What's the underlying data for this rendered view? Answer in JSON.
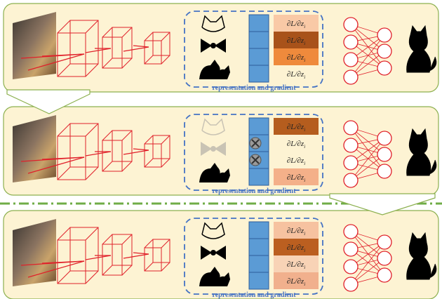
{
  "panels": [
    {
      "caption": "representation and gradient",
      "faded_icons": false,
      "masked_cells": [],
      "gradients": [
        {
          "text": "∂L/∂z",
          "sub": "i",
          "fill": "#f9c9a6"
        },
        {
          "text": "∂L/∂z",
          "sub": "i",
          "fill": "#a8521a"
        },
        {
          "text": "∂L/∂z",
          "sub": "i",
          "fill": "#ef8a3c"
        },
        {
          "text": "∂L/∂z",
          "sub": "i",
          "fill": "none"
        }
      ]
    },
    {
      "caption": "representation and gradient",
      "faded_icons": true,
      "masked_cells": [
        1,
        2
      ],
      "gradients": [
        {
          "text": "∂L/∂z",
          "sub": "i",
          "fill": "#b55d1e"
        },
        {
          "text": "∂L/∂z",
          "sub": "i",
          "fill": "none"
        },
        {
          "text": "∂L/∂z",
          "sub": "i",
          "fill": "none"
        },
        {
          "text": "∂L/∂z",
          "sub": "i",
          "fill": "#f4b089"
        }
      ]
    },
    {
      "caption": "representation and gradient",
      "faded_icons": false,
      "masked_cells": [],
      "gradients": [
        {
          "text": "∂L/∂z",
          "sub": "i",
          "fill": "#f6c2a0"
        },
        {
          "text": "∂L/∂z",
          "sub": "i",
          "fill": "#bb5f20"
        },
        {
          "text": "∂L/∂z",
          "sub": "i",
          "fill": "#f8d3b6"
        },
        {
          "text": "∂L/∂z",
          "sub": "i",
          "fill": "#f1b08d"
        }
      ]
    }
  ]
}
